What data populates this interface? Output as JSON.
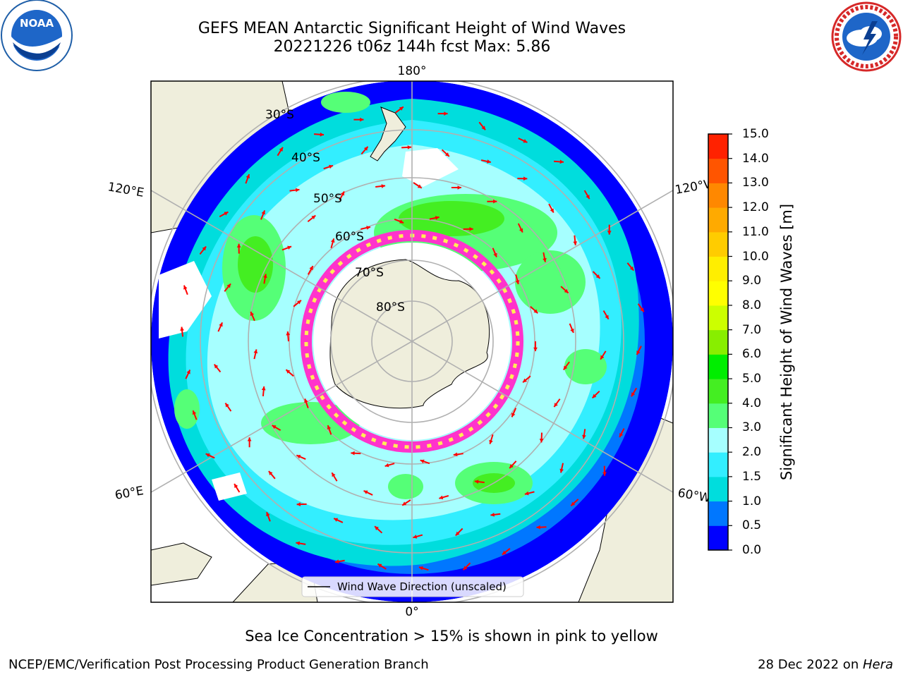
{
  "header": {
    "title_line1": "GEFS MEAN Antarctic Significant Height of Wind Waves",
    "title_line2": "20221226 t06z 144h fcst   Max: 5.86"
  },
  "logos": {
    "left": {
      "icon": "noaa-logo-icon",
      "text": "NOAA"
    },
    "right": {
      "icon": "nws-logo-icon"
    }
  },
  "map": {
    "projection": "south-polar-stereographic",
    "latitude_labels": [
      "30°S",
      "40°S",
      "50°S",
      "60°S",
      "70°S",
      "80°S"
    ],
    "longitude_labels": {
      "top": "180°",
      "bottom": "0°",
      "left_upper": "120°E",
      "left_lower": "60°E",
      "right_upper": "120°W",
      "right_lower": "60°W"
    },
    "legend": "Wind Wave Direction (unscaled)",
    "colors": {
      "land": "#efeedc",
      "ice_pink": "#ff33cc",
      "ice_yellow": "#ffee55",
      "arrow": "#ff0000"
    }
  },
  "colorbar": {
    "label": "Significant Height of Wind Waves [m]",
    "ticks": [
      "0.0",
      "0.5",
      "1.0",
      "1.5",
      "2.0",
      "3.0",
      "4.0",
      "5.0",
      "6.0",
      "7.0",
      "8.0",
      "9.0",
      "10.0",
      "11.0",
      "12.0",
      "13.0",
      "14.0",
      "15.0"
    ],
    "colors": [
      "#0000ff",
      "#0077ff",
      "#00dddd",
      "#33eeff",
      "#a6ffff",
      "#55ff77",
      "#44ee22",
      "#00ee00",
      "#88ee00",
      "#ccff00",
      "#ffff00",
      "#ffee00",
      "#ffcc00",
      "#ffaa00",
      "#ff8800",
      "#ff5500",
      "#ff2200"
    ]
  },
  "caption": "Sea Ice Concentration > 15% is shown in pink to yellow",
  "footer": {
    "left": "NCEP/EMC/Verification Post Processing Product Generation Branch",
    "right_prefix": "28 Dec 2022 on ",
    "right_machine": "Hera"
  }
}
